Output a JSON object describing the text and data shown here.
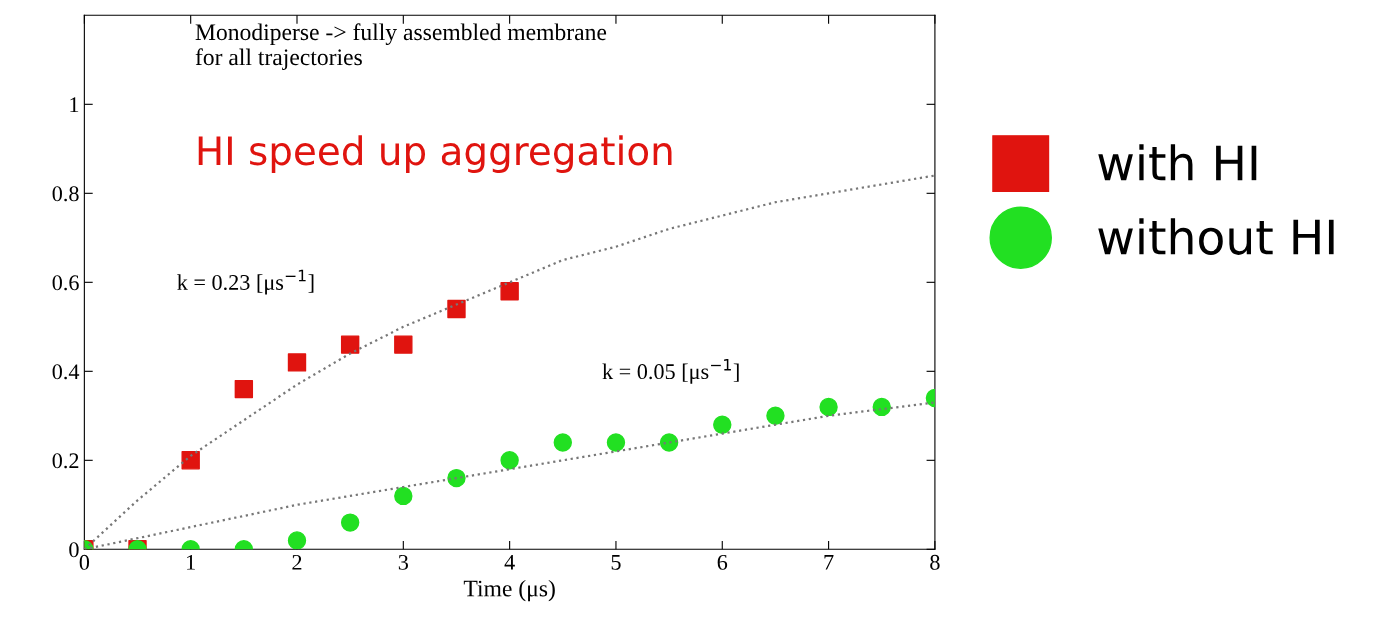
{
  "chart_data": {
    "type": "scatter",
    "xlabel": "Time (μs)",
    "xlim": [
      0,
      8
    ],
    "xticks": [
      0,
      1,
      2,
      3,
      4,
      5,
      6,
      7,
      8
    ],
    "ylim": [
      0,
      1.2
    ],
    "yticks": [
      0,
      0.2,
      0.4,
      0.6,
      0.8,
      1
    ],
    "grid": false,
    "legend": "right",
    "annotations": [
      "Monodiperse -> fully assembled membrane\nfor all trajectories",
      "HI speed up aggregation",
      "k = 0.23 [μs$^{−1}$]",
      "k = 0.05 [μs$^{−1}$]"
    ],
    "series": [
      {
        "name": "with HI",
        "color": "#e0140f",
        "marker": "square",
        "x": [
          0,
          0.5,
          1,
          1.5,
          2,
          2.5,
          3,
          3.5,
          4
        ],
        "values": [
          0,
          0,
          0.2,
          0.36,
          0.42,
          0.46,
          0.46,
          0.54,
          0.58
        ]
      },
      {
        "name": "without HI",
        "color": "#22e022",
        "marker": "circle",
        "x": [
          0,
          0.5,
          1,
          1.5,
          2,
          2.5,
          3,
          3.5,
          4,
          4.5,
          5,
          5.5,
          6,
          6.5,
          7,
          7.5,
          8
        ],
        "values": [
          0,
          0,
          0,
          0,
          0.02,
          0.06,
          0.12,
          0.16,
          0.2,
          0.24,
          0.24,
          0.24,
          0.28,
          0.3,
          0.32,
          0.32,
          0.34
        ]
      },
      {
        "type": "line",
        "color": "#777777",
        "line_style": "dotted",
        "marker": "none",
        "x": [
          0,
          0.5,
          1,
          1.5,
          2,
          2.5,
          3,
          3.5,
          4,
          4.5,
          5,
          5.5,
          6,
          6.5,
          7,
          7.5,
          8
        ],
        "values": [
          0,
          0.11,
          0.21,
          0.29,
          0.37,
          0.44,
          0.5,
          0.55,
          0.6,
          0.65,
          0.68,
          0.72,
          0.75,
          0.78,
          0.8,
          0.82,
          0.84
        ]
      },
      {
        "type": "line",
        "color": "#777777",
        "line_style": "dotted",
        "marker": "none",
        "x": [
          0,
          1,
          2,
          3,
          4,
          5,
          6,
          7,
          8
        ],
        "values": [
          0,
          0.05,
          0.1,
          0.14,
          0.18,
          0.22,
          0.26,
          0.3,
          0.33
        ]
      }
    ]
  }
}
